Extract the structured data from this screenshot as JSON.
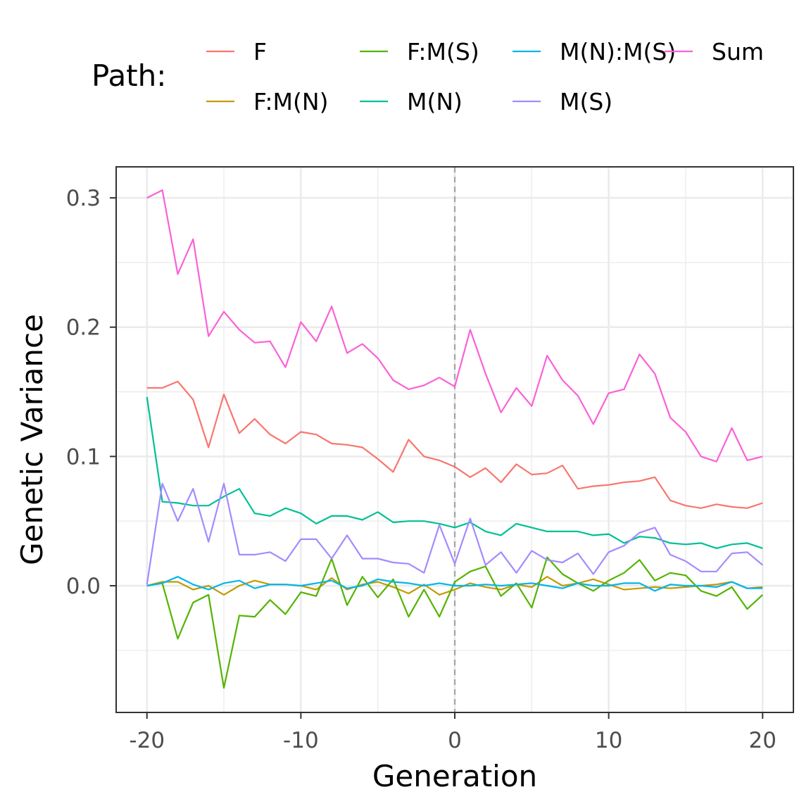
{
  "chart_data": {
    "type": "line",
    "xlabel": "Generation",
    "ylabel": "Genetic Variance",
    "xlim": [
      -22,
      22
    ],
    "ylim": [
      -0.098,
      0.324
    ],
    "x_ticks": [
      -20,
      -10,
      0,
      10,
      20
    ],
    "x_tick_labels": [
      "-20",
      "-10",
      "0",
      "10",
      "20"
    ],
    "y_ticks": [
      0.0,
      0.1,
      0.2,
      0.3
    ],
    "y_tick_labels": [
      "0.0",
      "0.1",
      "0.2",
      "0.3"
    ],
    "grid": true,
    "vline": {
      "x": 0,
      "style": "dashed"
    },
    "legend": {
      "title": "Path:",
      "position": "top"
    },
    "x": [
      -20,
      -19,
      -18,
      -17,
      -16,
      -15,
      -14,
      -13,
      -12,
      -11,
      -10,
      -9,
      -8,
      -7,
      -6,
      -5,
      -4,
      -3,
      -2,
      -1,
      0,
      1,
      2,
      3,
      4,
      5,
      6,
      7,
      8,
      9,
      10,
      11,
      12,
      13,
      14,
      15,
      16,
      17,
      18,
      19,
      20
    ],
    "series": [
      {
        "name": "F",
        "color": "#F8766D",
        "values": [
          0.153,
          0.153,
          0.158,
          0.144,
          0.107,
          0.148,
          0.118,
          0.129,
          0.117,
          0.11,
          0.119,
          0.117,
          0.11,
          0.109,
          0.107,
          0.098,
          0.088,
          0.113,
          0.1,
          0.097,
          0.092,
          0.084,
          0.091,
          0.08,
          0.094,
          0.086,
          0.087,
          0.093,
          0.075,
          0.077,
          0.078,
          0.08,
          0.081,
          0.084,
          0.066,
          0.062,
          0.06,
          0.063,
          0.061,
          0.06,
          0.064
        ]
      },
      {
        "name": "F:M(N)",
        "color": "#C49A00",
        "values": [
          0.0,
          0.003,
          0.003,
          -0.003,
          0.0,
          -0.007,
          0.0,
          0.004,
          0.001,
          0.001,
          0.0,
          -0.003,
          0.006,
          -0.003,
          0.001,
          0.003,
          -0.001,
          -0.006,
          0.001,
          -0.007,
          -0.003,
          0.002,
          -0.001,
          -0.003,
          0.001,
          -0.001,
          0.007,
          0.0,
          0.002,
          0.005,
          0.001,
          -0.003,
          -0.002,
          -0.001,
          -0.002,
          -0.001,
          0.0,
          0.001,
          0.003,
          -0.002,
          -0.001
        ]
      },
      {
        "name": "F:M(S)",
        "color": "#53B400",
        "values": [
          0.0,
          0.002,
          -0.041,
          -0.013,
          -0.007,
          -0.079,
          -0.023,
          -0.024,
          -0.011,
          -0.022,
          -0.005,
          -0.008,
          0.021,
          -0.015,
          0.007,
          -0.009,
          0.005,
          -0.024,
          -0.003,
          -0.024,
          0.003,
          0.011,
          0.015,
          -0.008,
          0.002,
          -0.017,
          0.022,
          0.009,
          0.002,
          -0.004,
          0.004,
          0.01,
          0.02,
          0.004,
          0.01,
          0.008,
          -0.004,
          -0.008,
          -0.001,
          -0.018,
          -0.007
        ]
      },
      {
        "name": "M(N)",
        "color": "#00C094",
        "values": [
          0.146,
          0.065,
          0.064,
          0.062,
          0.062,
          0.069,
          0.075,
          0.056,
          0.054,
          0.06,
          0.056,
          0.048,
          0.054,
          0.054,
          0.051,
          0.057,
          0.049,
          0.05,
          0.05,
          0.048,
          0.045,
          0.049,
          0.042,
          0.039,
          0.048,
          0.045,
          0.042,
          0.042,
          0.042,
          0.039,
          0.04,
          0.033,
          0.038,
          0.037,
          0.033,
          0.032,
          0.033,
          0.029,
          0.032,
          0.033,
          0.029
        ]
      },
      {
        "name": "M(N):M(S)",
        "color": "#00B6EB",
        "values": [
          0.0,
          0.002,
          0.007,
          0.001,
          -0.003,
          0.002,
          0.004,
          -0.002,
          0.001,
          0.001,
          0.0,
          0.002,
          0.004,
          -0.002,
          0.0,
          0.005,
          0.003,
          0.002,
          0.0,
          0.002,
          0.0,
          0.0,
          0.001,
          0.0,
          0.001,
          0.002,
          0.0,
          -0.002,
          0.002,
          0.0,
          0.0,
          0.002,
          0.002,
          -0.004,
          0.001,
          0.0,
          0.0,
          -0.001,
          0.003,
          -0.002,
          -0.002
        ]
      },
      {
        "name": "M(S)",
        "color": "#A58AFF",
        "values": [
          0.001,
          0.079,
          0.05,
          0.075,
          0.034,
          0.079,
          0.024,
          0.024,
          0.026,
          0.019,
          0.036,
          0.036,
          0.021,
          0.039,
          0.021,
          0.021,
          0.018,
          0.017,
          0.01,
          0.047,
          0.017,
          0.052,
          0.016,
          0.026,
          0.01,
          0.027,
          0.02,
          0.018,
          0.025,
          0.009,
          0.026,
          0.031,
          0.041,
          0.045,
          0.024,
          0.019,
          0.011,
          0.011,
          0.025,
          0.026,
          0.016
        ]
      },
      {
        "name": "Sum",
        "color": "#FB61D7",
        "values": [
          0.3,
          0.306,
          0.241,
          0.268,
          0.193,
          0.212,
          0.198,
          0.188,
          0.189,
          0.169,
          0.204,
          0.189,
          0.216,
          0.18,
          0.187,
          0.176,
          0.159,
          0.152,
          0.155,
          0.161,
          0.154,
          0.198,
          0.164,
          0.134,
          0.153,
          0.139,
          0.178,
          0.159,
          0.147,
          0.125,
          0.149,
          0.152,
          0.179,
          0.164,
          0.13,
          0.119,
          0.1,
          0.096,
          0.122,
          0.097,
          0.1
        ]
      }
    ]
  }
}
